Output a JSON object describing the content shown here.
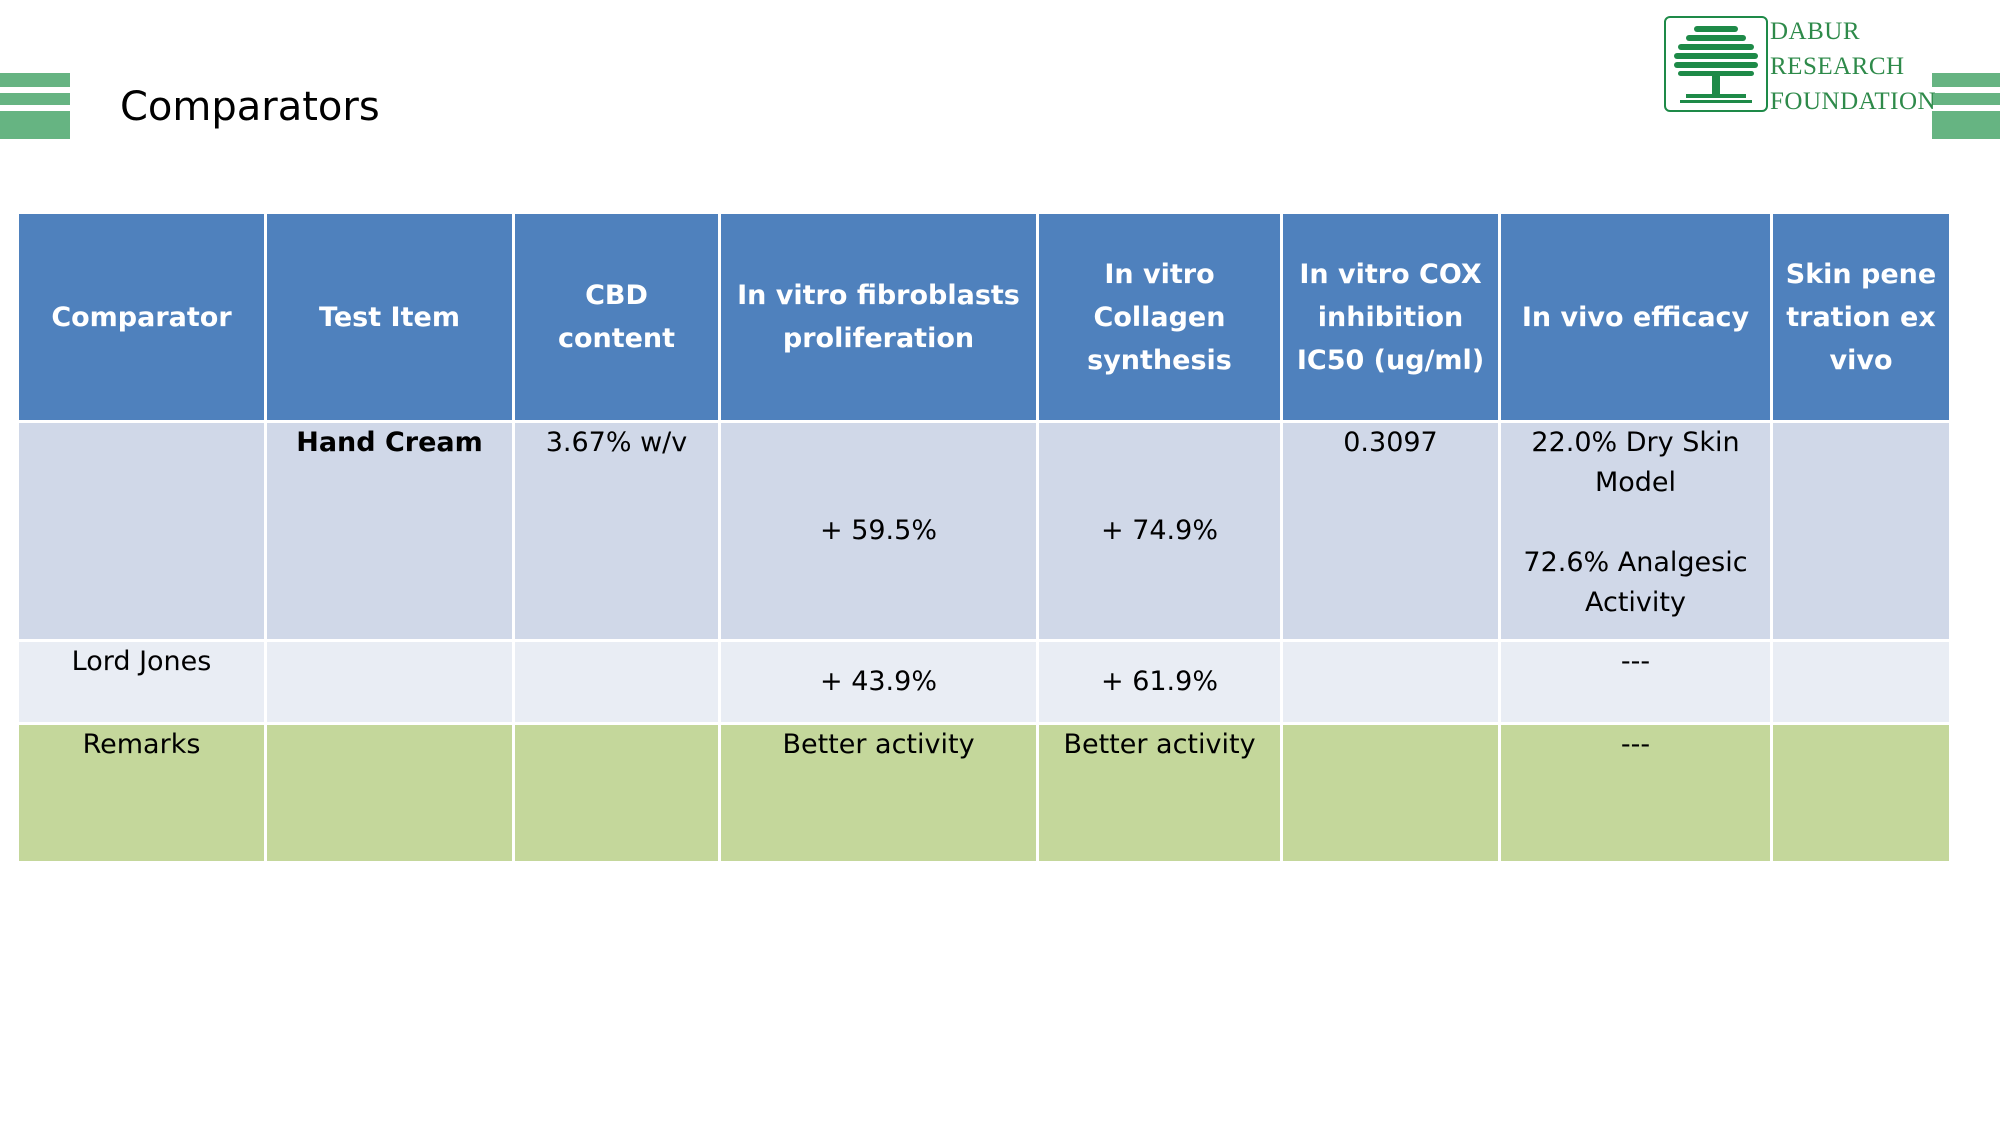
{
  "slide": {
    "title": "Comparators",
    "logo": {
      "line1": "DABUR",
      "line2": "RESEARCH",
      "line3": "FOUNDATION"
    }
  },
  "colors": {
    "accent_bar": "#66b482",
    "header_bg": "#4f81bd",
    "row1_bg": "#d0d8e8",
    "row2_bg": "#e9edf4",
    "row3_bg": "#c4d79b",
    "logo_green": "#1e8a48"
  },
  "table": {
    "headers": [
      "Comparator",
      "Test Item",
      "CBD content",
      "In vitro fibroblasts proliferation",
      "In vitro Collagen synthesis",
      "In vitro COX inhibition IC50 (ug/ml)",
      "In vivo efficacy",
      "Skin penetration ex vivo"
    ],
    "rows": [
      {
        "comparator": "",
        "test_item": "Hand Cream",
        "cbd_content": "3.67% w/v",
        "fibroblasts": "+ 59.5%",
        "collagen": "+ 74.9%",
        "cox": "0.3097",
        "in_vivo_1": "22.0% Dry Skin Model",
        "in_vivo_2": "72.6% Analgesic Activity",
        "skin_penetration": ""
      },
      {
        "comparator": "Lord Jones",
        "test_item": "",
        "cbd_content": "",
        "fibroblasts": "+ 43.9%",
        "collagen": "+ 61.9%",
        "cox": "",
        "in_vivo": "---",
        "skin_penetration": ""
      },
      {
        "comparator": "Remarks",
        "test_item": "",
        "cbd_content": "",
        "fibroblasts": "Better activity",
        "collagen": "Better activity",
        "cox": "",
        "in_vivo": "---",
        "skin_penetration": ""
      }
    ]
  }
}
